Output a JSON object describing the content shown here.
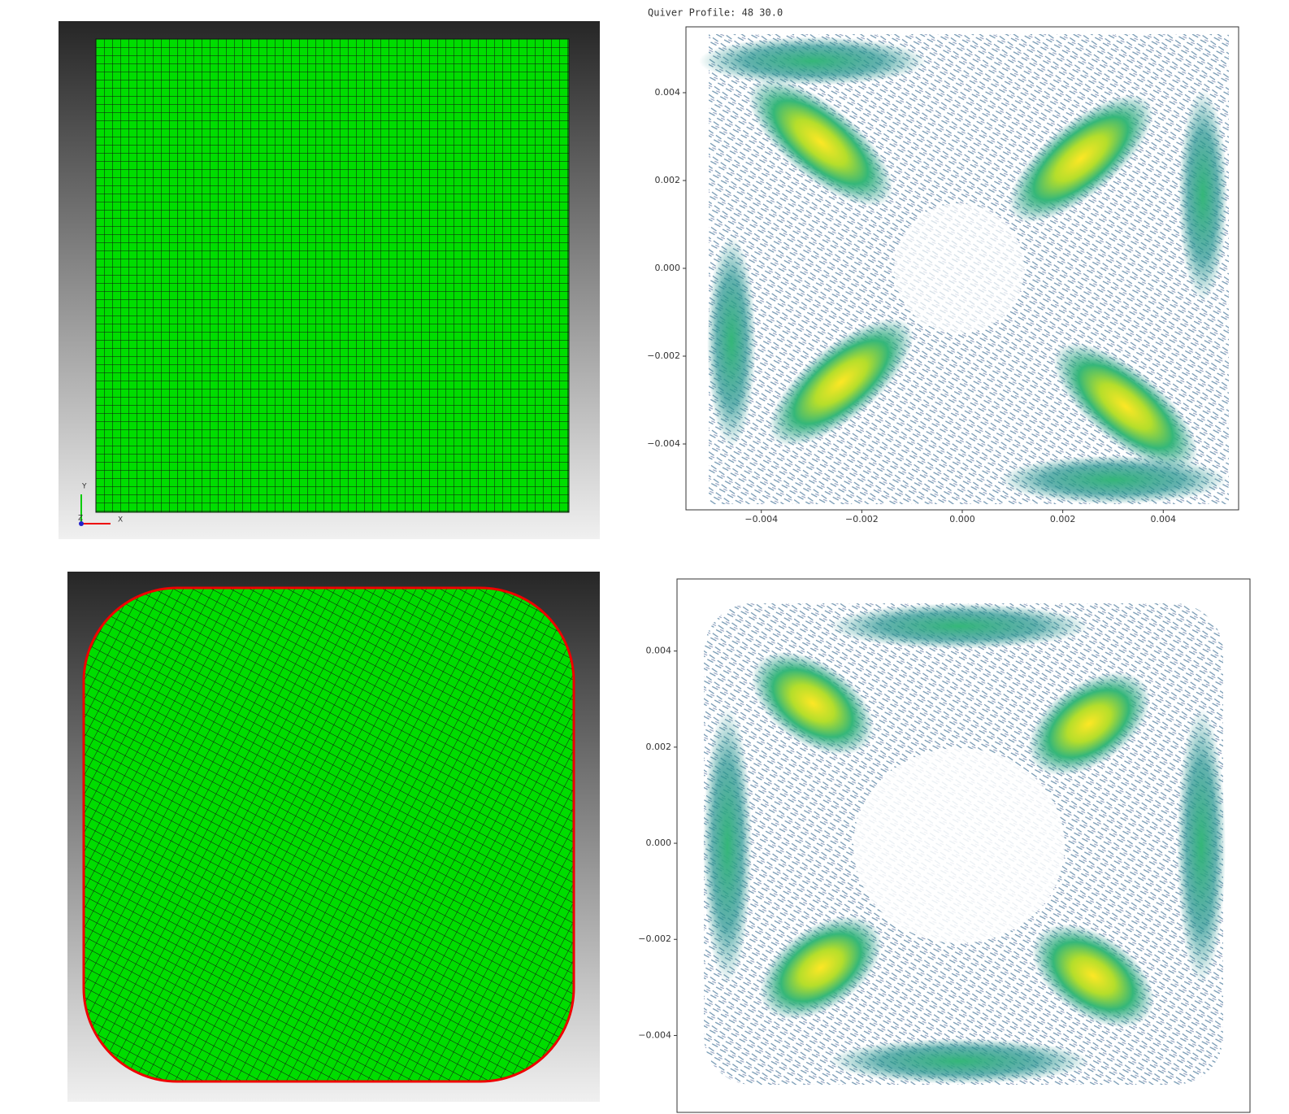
{
  "chart_data": [
    {
      "type": "quiver",
      "title": "Quiver Profile: 48 30.0",
      "xlim": [
        -0.0055,
        0.0055
      ],
      "ylim": [
        -0.0055,
        0.0055
      ],
      "xticks": [
        {
          "value": -0.004,
          "label": "−0.004"
        },
        {
          "value": -0.002,
          "label": "−0.002"
        },
        {
          "value": 0,
          "label": "0.000"
        },
        {
          "value": 0.002,
          "label": "0.002"
        },
        {
          "value": 0.004,
          "label": "0.004"
        }
      ],
      "yticks": [
        {
          "value": -0.004,
          "label": "−0.004"
        },
        {
          "value": -0.002,
          "label": "−0.002"
        },
        {
          "value": 0,
          "label": "0.000"
        },
        {
          "value": 0.002,
          "label": "0.002"
        },
        {
          "value": 0.004,
          "label": "0.004"
        }
      ]
    },
    {
      "type": "quiver",
      "ylim": [
        -0.0056,
        0.0055
      ],
      "yticks": [
        {
          "value": -0.004,
          "label": "−0.004"
        },
        {
          "value": -0.002,
          "label": "−0.002"
        },
        {
          "value": 0,
          "label": "0.000"
        },
        {
          "value": 0.002,
          "label": "0.002"
        },
        {
          "value": 0.004,
          "label": "0.004"
        }
      ]
    }
  ],
  "gizmo": {
    "y": "Y",
    "x": "X",
    "z": "Z"
  }
}
